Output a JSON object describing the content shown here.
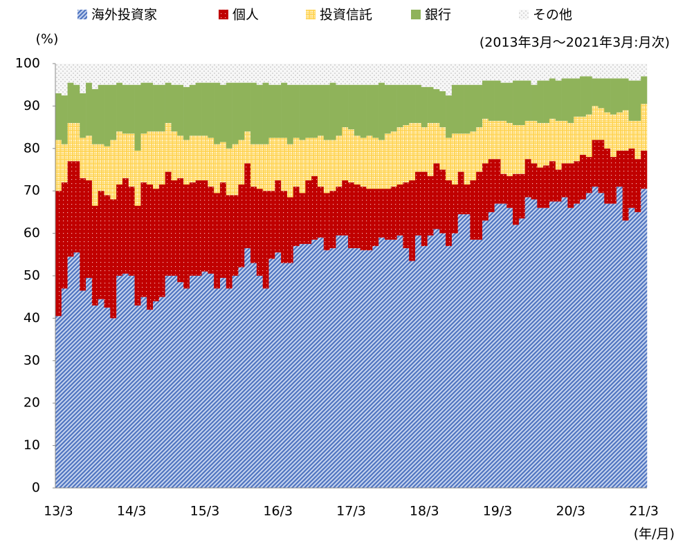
{
  "chart_data": {
    "type": "stacked_bar",
    "y_label": "(%)",
    "note": "(2013年3月～2021年3月:月次)",
    "x_label": "(年/月)",
    "categories": [
      "13/3",
      null,
      null,
      null,
      null,
      null,
      null,
      null,
      null,
      null,
      null,
      null,
      "14/3",
      null,
      null,
      null,
      null,
      null,
      null,
      null,
      null,
      null,
      null,
      null,
      "15/3",
      null,
      null,
      null,
      null,
      null,
      null,
      null,
      null,
      null,
      null,
      null,
      "16/3",
      null,
      null,
      null,
      null,
      null,
      null,
      null,
      null,
      null,
      null,
      null,
      "17/3",
      null,
      null,
      null,
      null,
      null,
      null,
      null,
      null,
      null,
      null,
      null,
      "18/3",
      null,
      null,
      null,
      null,
      null,
      null,
      null,
      null,
      null,
      null,
      null,
      "19/3",
      null,
      null,
      null,
      null,
      null,
      null,
      null,
      null,
      null,
      null,
      null,
      "20/3",
      null,
      null,
      null,
      null,
      null,
      null,
      null,
      null,
      null,
      null,
      null,
      "21/3"
    ],
    "series": [
      {
        "name": "海外投資家",
        "color": "#4f74c0",
        "values": [
          40.5,
          47,
          54.5,
          55.5,
          46.5,
          49.5,
          43,
          44.5,
          42.5,
          40,
          50,
          50.5,
          50,
          43,
          45,
          42,
          44,
          45,
          50,
          50,
          48.5,
          47,
          50,
          50,
          51,
          50.5,
          47,
          49.5,
          47,
          50,
          52,
          56.5,
          53,
          50,
          47,
          54,
          55.5,
          53,
          53,
          57,
          57.5,
          57.5,
          58.5,
          59,
          56,
          56.5,
          59.5,
          59.5,
          56.5,
          56.5,
          56,
          56,
          57,
          59,
          58.5,
          58.5,
          59.5,
          56.5,
          53.5,
          59.5,
          57,
          59.5,
          61,
          60,
          57,
          60,
          64.5,
          64.5,
          58.5,
          58.5,
          63,
          65,
          67,
          67,
          66,
          62,
          63.5,
          68.5,
          68,
          66,
          66,
          67.5,
          67.5,
          68.5,
          66,
          67,
          68,
          69.5,
          71,
          69.5,
          67,
          67,
          71,
          63,
          66,
          65,
          70.5
        ]
      },
      {
        "name": "個人",
        "color": "#c00000",
        "values": [
          29.5,
          25,
          22.5,
          21.5,
          26.5,
          23,
          23.5,
          25.5,
          26.5,
          28,
          21.5,
          22.5,
          21,
          23.5,
          27,
          29.5,
          26.5,
          26.5,
          24.5,
          22.5,
          24.5,
          24.5,
          22,
          22.5,
          21.5,
          20.5,
          22.5,
          22.5,
          22,
          19,
          19.5,
          20,
          18,
          20.5,
          23,
          16,
          17,
          17,
          15.5,
          14,
          12,
          15,
          15,
          12,
          13.5,
          13.5,
          11.5,
          13,
          15.5,
          15,
          15,
          14.5,
          13.5,
          11.5,
          12,
          12.5,
          12,
          15.5,
          19,
          15,
          17.5,
          14,
          15.5,
          15,
          15.5,
          11.5,
          10,
          7,
          14,
          16,
          13.5,
          12.5,
          10.5,
          7,
          7.5,
          12,
          10.5,
          9,
          8.5,
          9.5,
          10,
          9.5,
          7.5,
          8,
          10.5,
          10,
          10.5,
          8.5,
          11,
          12.5,
          13,
          11,
          8.5,
          16.5,
          14,
          12.5,
          9
        ]
      },
      {
        "name": "投資信託",
        "color": "#ffd24d",
        "values": [
          12,
          9,
          9,
          9,
          9.5,
          10.5,
          14.5,
          11,
          11.5,
          14,
          12.5,
          10.5,
          12.5,
          13,
          11.5,
          12.5,
          13.5,
          12.5,
          11.5,
          11.5,
          10,
          10.5,
          11,
          10.5,
          10.5,
          11.5,
          11.5,
          9.5,
          11,
          12,
          10.5,
          7.5,
          10,
          10.5,
          11,
          12.5,
          10,
          12.5,
          12.5,
          11.5,
          12.5,
          10,
          9,
          12,
          12.5,
          12,
          12,
          12.5,
          12.5,
          11.5,
          11.5,
          12.5,
          12,
          11.5,
          13,
          13,
          13.5,
          13.5,
          13.5,
          11.5,
          10.5,
          12.5,
          9.5,
          10,
          10,
          12,
          9,
          12,
          11.5,
          10.5,
          10.5,
          9,
          9,
          12.5,
          12.5,
          11.5,
          11.5,
          9,
          10,
          10.5,
          10,
          10,
          11.5,
          10,
          9.5,
          10.5,
          9,
          10,
          8,
          7.5,
          8.5,
          10,
          9,
          9.5,
          6.5,
          9,
          11
        ]
      },
      {
        "name": "銀行",
        "color": "#8fb35a",
        "values": [
          11,
          11.5,
          9.5,
          9,
          10.5,
          12.5,
          13,
          14,
          14.5,
          13,
          11.5,
          11.5,
          11.5,
          15.5,
          12,
          11.5,
          11,
          11,
          9.5,
          11,
          12,
          12.5,
          12,
          12.5,
          12.5,
          13,
          14.5,
          13.5,
          15.5,
          14.5,
          13.5,
          11.5,
          14.5,
          14,
          14.5,
          12.5,
          12.5,
          13,
          14,
          12.5,
          13,
          12.5,
          12.5,
          12,
          13,
          13.5,
          12,
          10,
          10.5,
          12,
          12.5,
          12,
          12.5,
          13.5,
          11.5,
          11,
          10,
          9.5,
          9,
          9,
          9.5,
          8.5,
          8,
          8.5,
          10,
          11.5,
          11.5,
          11.5,
          11,
          10,
          9,
          9.5,
          9.5,
          9,
          9.5,
          10.5,
          10.5,
          9.5,
          8.5,
          10,
          10,
          9.5,
          9.5,
          10,
          10.5,
          9,
          9.5,
          9,
          6.5,
          7,
          8,
          8.5,
          8,
          7.5,
          9.5,
          9.5,
          6.5
        ]
      },
      {
        "name": "その他",
        "color": "#d9d9d9",
        "values": [
          7,
          7.5,
          4.5,
          5,
          7,
          4.5,
          6,
          5,
          5,
          5,
          4.5,
          5,
          5,
          5,
          4.5,
          4.5,
          5,
          5,
          4.5,
          5,
          5,
          5.5,
          5,
          4.5,
          4.5,
          4.5,
          4.5,
          5,
          4.5,
          4.5,
          4.5,
          4.5,
          4.5,
          5,
          4.5,
          5,
          5,
          4.5,
          5,
          5,
          5,
          5,
          5,
          5,
          5,
          4.5,
          5,
          5,
          5,
          5,
          5,
          5,
          5,
          4.5,
          5,
          5,
          5,
          5,
          5,
          5,
          5.5,
          5.5,
          6,
          6.5,
          7.5,
          5,
          5,
          5,
          5,
          5,
          4,
          4,
          4,
          4.5,
          4.5,
          4,
          4,
          4,
          5,
          4,
          4,
          3.5,
          4,
          3.5,
          3.5,
          3.5,
          3,
          3,
          3.5,
          3.5,
          3.5,
          3.5,
          3.5,
          3.5,
          4,
          4,
          3
        ]
      }
    ],
    "ylim": [
      0,
      100
    ],
    "yticks": [
      0,
      10,
      20,
      30,
      40,
      50,
      60,
      70,
      80,
      90,
      100
    ],
    "grid": false
  }
}
